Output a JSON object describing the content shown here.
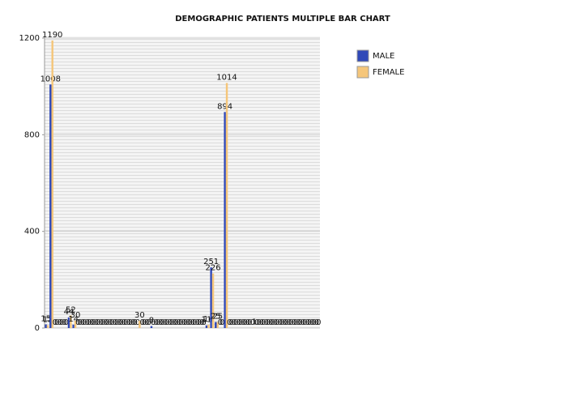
{
  "chart_data": {
    "type": "bar",
    "title": "DEMOGRAPHIC PATIENTS MULTIPLE BAR CHART",
    "categories": [
      null,
      null,
      null,
      null,
      null,
      null,
      null,
      null,
      null,
      null,
      null,
      null,
      null,
      null,
      null,
      null,
      null,
      null,
      null,
      null,
      null,
      null,
      null,
      null,
      null,
      null,
      null,
      null,
      null,
      null,
      null,
      null,
      null,
      null,
      null,
      null,
      null,
      null,
      null,
      null,
      null,
      null,
      null,
      null,
      null,
      null,
      null,
      null,
      null,
      null,
      null,
      null,
      null,
      null,
      null,
      null,
      null,
      null,
      null,
      null
    ],
    "series": [
      {
        "name": "MALE",
        "color": "#2f48b8",
        "values": [
          15,
          1008,
          0,
          0,
          0,
          44,
          14,
          0,
          0,
          0,
          0,
          0,
          0,
          0,
          0,
          0,
          0,
          0,
          0,
          0,
          0,
          0,
          0,
          8,
          0,
          0,
          0,
          0,
          0,
          0,
          0,
          0,
          0,
          0,
          0,
          11,
          251,
          25,
          0,
          894,
          0,
          0,
          0,
          0,
          0,
          0,
          0,
          0,
          0,
          0,
          0,
          0,
          0,
          0,
          0,
          0,
          0,
          0,
          0,
          0
        ]
      },
      {
        "name": "FEMALE",
        "color": "#f5c67a",
        "values": [
          12,
          1190,
          0,
          0,
          0,
          52,
          30,
          0,
          0,
          0,
          0,
          0,
          0,
          0,
          0,
          0,
          0,
          0,
          0,
          0,
          30,
          0,
          0,
          0,
          0,
          0,
          0,
          0,
          0,
          0,
          0,
          0,
          0,
          0,
          0,
          14,
          226,
          25,
          0,
          1014,
          0,
          0,
          0,
          0,
          0,
          1,
          0,
          0,
          0,
          0,
          0,
          0,
          0,
          0,
          0,
          0,
          0,
          0,
          0,
          0
        ]
      }
    ],
    "ylim": [
      0,
      1200
    ],
    "yticks": [
      0,
      400,
      800,
      1200
    ],
    "grid": true,
    "legend": "right"
  }
}
